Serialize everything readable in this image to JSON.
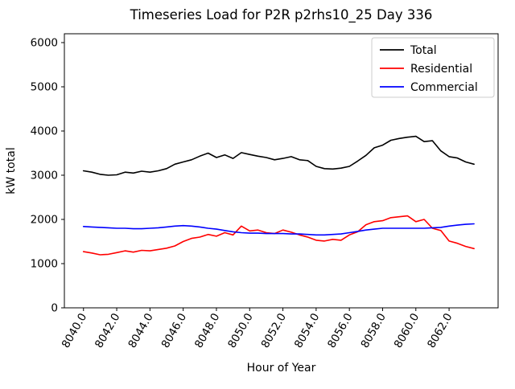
{
  "title": "Timeseries Load for P2R p2rhs10_25  Day 336",
  "chart_data": {
    "type": "line",
    "title": "Timeseries Load for P2R p2rhs10_25  Day 336",
    "xlabel": "Hour of Year",
    "ylabel": "kW total",
    "xlim": [
      8038.85,
      8064.95
    ],
    "ylim": [
      0,
      6200
    ],
    "yticks": [
      0,
      1000,
      2000,
      3000,
      4000,
      5000,
      6000
    ],
    "xticks": [
      8040,
      8042,
      8044,
      8046,
      8048,
      8050,
      8052,
      8054,
      8056,
      8058,
      8060,
      8062
    ],
    "xtick_labels": [
      "8040.0",
      "8042.0",
      "8044.0",
      "8046.0",
      "8048.0",
      "8050.0",
      "8052.0",
      "8054.0",
      "8056.0",
      "8058.0",
      "8060.0",
      "8062.0"
    ],
    "grid": false,
    "legend_position": "upper right",
    "x": [
      8040.0,
      8040.5,
      8041.0,
      8041.5,
      8042.0,
      8042.5,
      8043.0,
      8043.5,
      8044.0,
      8044.5,
      8045.0,
      8045.5,
      8046.0,
      8046.5,
      8047.0,
      8047.5,
      8048.0,
      8048.5,
      8049.0,
      8049.5,
      8050.0,
      8050.5,
      8051.0,
      8051.5,
      8052.0,
      8052.5,
      8053.0,
      8053.5,
      8054.0,
      8054.5,
      8055.0,
      8055.5,
      8056.0,
      8056.5,
      8057.0,
      8057.5,
      8058.0,
      8058.5,
      8059.0,
      8059.5,
      8060.0,
      8060.5,
      8061.0,
      8061.5,
      8062.0,
      8062.5,
      8063.0,
      8063.5
    ],
    "series": [
      {
        "name": "Total",
        "color": "#000000",
        "values": [
          3100,
          3070,
          3020,
          3000,
          3010,
          3070,
          3050,
          3090,
          3070,
          3100,
          3150,
          3250,
          3300,
          3350,
          3430,
          3500,
          3400,
          3460,
          3380,
          3510,
          3470,
          3430,
          3400,
          3350,
          3380,
          3420,
          3350,
          3330,
          3200,
          3150,
          3140,
          3160,
          3200,
          3320,
          3450,
          3620,
          3680,
          3790,
          3830,
          3860,
          3880,
          3760,
          3780,
          3550,
          3420,
          3390,
          3300,
          3250
        ]
      },
      {
        "name": "Residential",
        "color": "#ff0000",
        "values": [
          1270,
          1240,
          1200,
          1210,
          1250,
          1290,
          1260,
          1300,
          1290,
          1320,
          1350,
          1400,
          1500,
          1570,
          1600,
          1660,
          1620,
          1700,
          1650,
          1850,
          1740,
          1760,
          1700,
          1680,
          1760,
          1710,
          1650,
          1600,
          1530,
          1510,
          1550,
          1530,
          1650,
          1720,
          1880,
          1950,
          1970,
          2040,
          2060,
          2080,
          1950,
          2000,
          1800,
          1750,
          1510,
          1460,
          1390,
          1340
        ]
      },
      {
        "name": "Commercial",
        "color": "#0000ff",
        "values": [
          1840,
          1830,
          1820,
          1810,
          1800,
          1800,
          1790,
          1790,
          1800,
          1810,
          1830,
          1850,
          1860,
          1850,
          1830,
          1800,
          1780,
          1750,
          1720,
          1700,
          1690,
          1690,
          1680,
          1680,
          1680,
          1670,
          1670,
          1660,
          1650,
          1650,
          1660,
          1670,
          1700,
          1730,
          1760,
          1780,
          1800,
          1800,
          1800,
          1800,
          1800,
          1800,
          1810,
          1820,
          1850,
          1870,
          1890,
          1900
        ]
      }
    ]
  }
}
